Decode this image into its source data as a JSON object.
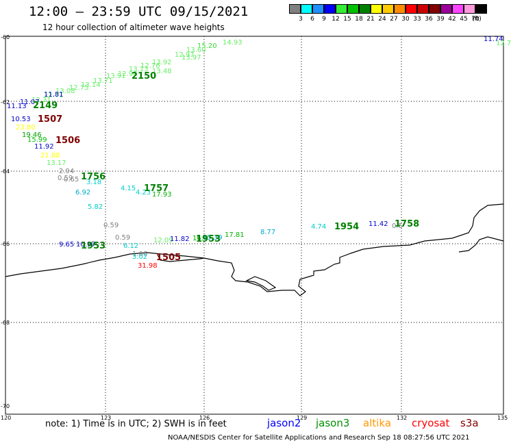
{
  "header": {
    "title": "12:00 – 23:59 UTC 09/15/2021",
    "subtitle": "12 hour collection of altimeter wave heights"
  },
  "colorbar": {
    "unit_label": "(ft)",
    "bins": [
      {
        "color": "#808080",
        "label": "3"
      },
      {
        "color": "#00ffff",
        "label": "6"
      },
      {
        "color": "#1e90ff",
        "label": "9"
      },
      {
        "color": "#0000ff",
        "label": "12"
      },
      {
        "color": "#33ee33",
        "label": "15"
      },
      {
        "color": "#00c000",
        "label": "18"
      },
      {
        "color": "#008000",
        "label": "21"
      },
      {
        "color": "#ffff00",
        "label": "24"
      },
      {
        "color": "#ffcc00",
        "label": "27"
      },
      {
        "color": "#ff8c00",
        "label": "30"
      },
      {
        "color": "#ff0000",
        "label": "33"
      },
      {
        "color": "#cc0000",
        "label": "36"
      },
      {
        "color": "#800000",
        "label": "39"
      },
      {
        "color": "#990099",
        "label": "42"
      },
      {
        "color": "#ff44ff",
        "label": "45"
      },
      {
        "color": "#ff99dd",
        "label": "70"
      },
      {
        "color": "#000000",
        "label": ""
      }
    ]
  },
  "axes": {
    "lat_ticks": [
      "-60",
      "-62",
      "-64",
      "-66",
      "-68",
      "-70"
    ],
    "lon_ticks": [
      "120",
      "123",
      "126",
      "129",
      "132",
      "135"
    ]
  },
  "observations": [
    {
      "text": "14.93",
      "color": "#66ee66"
    },
    {
      "text": "15.20",
      "color": "#33dd33"
    },
    {
      "text": "13.60",
      "color": "#66ee66"
    },
    {
      "text": "12.97",
      "color": "#66ee66"
    },
    {
      "text": "13.97",
      "color": "#66ee66"
    },
    {
      "text": "13.92",
      "color": "#66ee66"
    },
    {
      "text": "12.76",
      "color": "#66ee66"
    },
    {
      "text": "13.13",
      "color": "#66ee66"
    },
    {
      "text": "12.96",
      "color": "#66ee66"
    },
    {
      "text": "13.48",
      "color": "#66ee66"
    },
    {
      "text": "13.91",
      "color": "#66ee66"
    },
    {
      "text": "13.71",
      "color": "#66ee66"
    },
    {
      "text": "13.14",
      "color": "#66ee66"
    },
    {
      "text": "12.75",
      "color": "#66ee66"
    },
    {
      "text": "13.08",
      "color": "#66ee66"
    },
    {
      "text": "12.71",
      "color": "#66ee66"
    },
    {
      "text": "12.31",
      "color": "#66ee66"
    },
    {
      "text": "11.81",
      "color": "#0000cc"
    },
    {
      "text": "11.07",
      "color": "#0000cc"
    },
    {
      "text": "11.13",
      "color": "#0000cc"
    },
    {
      "text": "10.53",
      "color": "#0000cc"
    },
    {
      "text": "23.80",
      "color": "#ffff00"
    },
    {
      "text": "19.46",
      "color": "#00a000"
    },
    {
      "text": "15.99",
      "color": "#00c000"
    },
    {
      "text": "11.92",
      "color": "#0000cc"
    },
    {
      "text": "21.88",
      "color": "#ffff00"
    },
    {
      "text": "13.17",
      "color": "#66ee66"
    },
    {
      "text": "2.94",
      "color": "#808080"
    },
    {
      "text": "0.59",
      "color": "#808080"
    },
    {
      "text": "0.65",
      "color": "#808080"
    },
    {
      "text": "3.18",
      "color": "#00cccc"
    },
    {
      "text": "6.92",
      "color": "#00aacc"
    },
    {
      "text": "4.15",
      "color": "#00cccc"
    },
    {
      "text": "4.23",
      "color": "#00cccc"
    },
    {
      "text": "17.93",
      "color": "#00b000"
    },
    {
      "text": "5.82",
      "color": "#00cccc"
    },
    {
      "text": "0.59",
      "color": "#808080"
    },
    {
      "text": "0.59",
      "color": "#808080"
    },
    {
      "text": "6.12",
      "color": "#00cccc"
    },
    {
      "text": "1.06",
      "color": "#808080"
    },
    {
      "text": "3.02",
      "color": "#00cccc"
    },
    {
      "text": "9.65",
      "color": "#0000cc"
    },
    {
      "text": "10.97",
      "color": "#0000cc"
    },
    {
      "text": "12.09",
      "color": "#66ee66"
    },
    {
      "text": "11.82",
      "color": "#0000cc"
    },
    {
      "text": "16.4",
      "color": "#00b000"
    },
    {
      "text": "15.39",
      "color": "#00aacc"
    },
    {
      "text": "17.81",
      "color": "#00b000"
    },
    {
      "text": "8.77",
      "color": "#00aacc"
    },
    {
      "text": "4.74",
      "color": "#00cccc"
    },
    {
      "text": "11.42",
      "color": "#0000cc"
    },
    {
      "text": "0.5",
      "color": "#808080"
    },
    {
      "text": "31.98",
      "color": "#ff0000"
    },
    {
      "text": "11.74",
      "color": "#0000cc"
    },
    {
      "text": "12.7",
      "color": "#66ee66"
    }
  ],
  "pass_times": [
    {
      "text": "2150",
      "color": "#008000"
    },
    {
      "text": "2149",
      "color": "#008000"
    },
    {
      "text": "1507",
      "color": "#800000"
    },
    {
      "text": "1506",
      "color": "#800000"
    },
    {
      "text": "1756",
      "color": "#008000"
    },
    {
      "text": "1757",
      "color": "#008000"
    },
    {
      "text": "1953",
      "color": "#008000"
    },
    {
      "text": "1953",
      "color": "#008000"
    },
    {
      "text": "1954",
      "color": "#008000"
    },
    {
      "text": "1758",
      "color": "#008000"
    },
    {
      "text": "1505",
      "color": "#800000"
    }
  ],
  "footer": {
    "note": "note:  1) Time is in UTC;  2) SWH is in feet",
    "satellites": [
      {
        "name": "jason2",
        "color": "#0000ff"
      },
      {
        "name": "jason3",
        "color": "#009000"
      },
      {
        "name": "altika",
        "color": "#ff9900"
      },
      {
        "name": "cryosat",
        "color": "#ff0000"
      },
      {
        "name": "s3a",
        "color": "#800000"
      }
    ],
    "credit": "NOAA/NESDIS Center for Satellite Applications and Research    Sep 18 08:27:56 UTC 2021"
  }
}
